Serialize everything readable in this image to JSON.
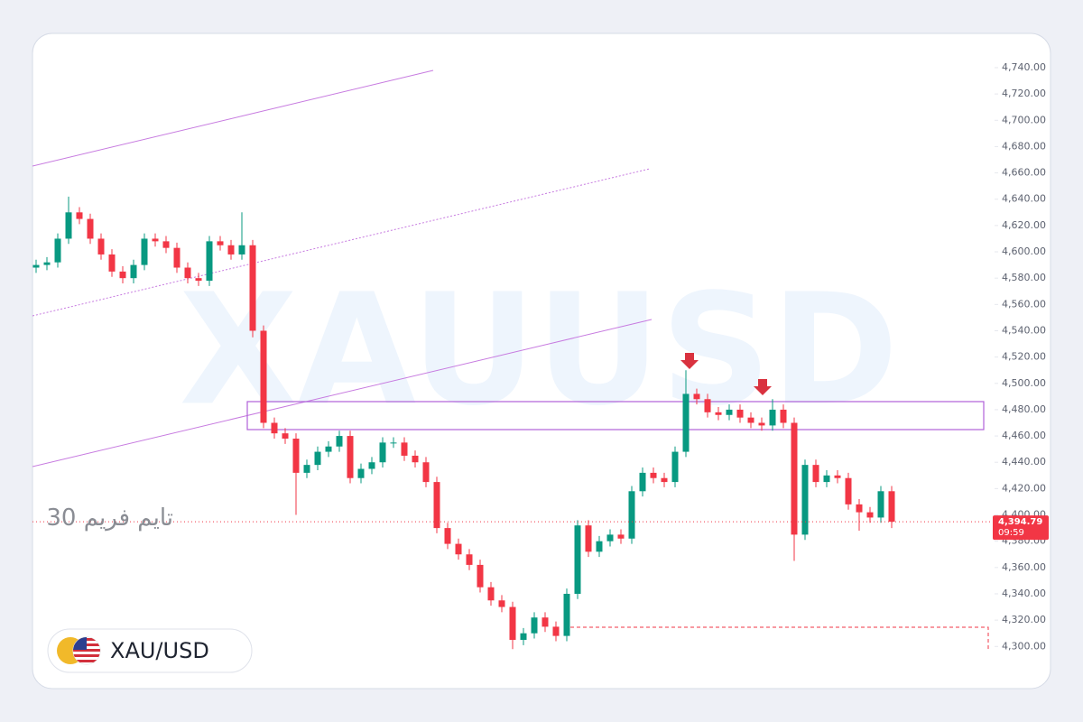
{
  "chart_data": {
    "type": "candlestick",
    "watermark": "XAUUSD",
    "symbol": "XAU/USD",
    "timeframe_note": "تايم فريم 30",
    "up_color": "#089981",
    "down_color": "#f23645",
    "open": [
      4588,
      4590,
      4592,
      4610,
      4630,
      4625,
      4610,
      4598,
      4585,
      4580,
      4590,
      4610,
      4608,
      4603,
      4588,
      4580,
      4578,
      4608,
      4605,
      4598,
      4605,
      4540,
      4470,
      4462,
      4458,
      4432,
      4438,
      4448,
      4452,
      4460,
      4428,
      4435,
      4440,
      4455,
      4455,
      4445,
      4440,
      4425,
      4390,
      4378,
      4370,
      4362,
      4345,
      4335,
      4330,
      4305,
      4310,
      4322,
      4315,
      4308,
      4340,
      4392,
      4372,
      4380,
      4385,
      4382,
      4418,
      4432,
      4428,
      4425,
      4448,
      4492,
      4488,
      4478,
      4476,
      4480,
      4474,
      4470,
      4468,
      4480,
      4470,
      4385,
      4438,
      4425,
      4430,
      4428,
      4408,
      4402,
      4398,
      4418
    ],
    "high": [
      4594,
      4596,
      4614,
      4642,
      4634,
      4629,
      4614,
      4602,
      4589,
      4594,
      4614,
      4614,
      4612,
      4607,
      4592,
      4584,
      4612,
      4612,
      4609,
      4630,
      4609,
      4544,
      4474,
      4466,
      4462,
      4442,
      4452,
      4456,
      4464,
      4464,
      4439,
      4444,
      4459,
      4459,
      4459,
      4449,
      4444,
      4429,
      4394,
      4382,
      4374,
      4366,
      4349,
      4339,
      4334,
      4314,
      4326,
      4326,
      4319,
      4344,
      4396,
      4396,
      4384,
      4389,
      4389,
      4422,
      4436,
      4436,
      4432,
      4452,
      4510,
      4496,
      4492,
      4482,
      4484,
      4484,
      4478,
      4474,
      4488,
      4484,
      4474,
      4442,
      4442,
      4434,
      4434,
      4432,
      4412,
      4406,
      4422,
      4422
    ],
    "low": [
      4584,
      4586,
      4588,
      4606,
      4621,
      4606,
      4594,
      4581,
      4576,
      4576,
      4586,
      4604,
      4599,
      4584,
      4576,
      4574,
      4574,
      4601,
      4594,
      4594,
      4535,
      4466,
      4458,
      4454,
      4400,
      4428,
      4434,
      4444,
      4448,
      4424,
      4424,
      4431,
      4436,
      4451,
      4441,
      4436,
      4421,
      4386,
      4374,
      4366,
      4358,
      4341,
      4331,
      4326,
      4298,
      4301,
      4306,
      4311,
      4304,
      4304,
      4336,
      4368,
      4368,
      4376,
      4378,
      4378,
      4414,
      4424,
      4421,
      4421,
      4444,
      4484,
      4474,
      4472,
      4472,
      4470,
      4466,
      4464,
      4464,
      4466,
      4365,
      4381,
      4421,
      4421,
      4424,
      4404,
      4388,
      4394,
      4394,
      4390
    ],
    "close": [
      4590,
      4592,
      4610,
      4630,
      4625,
      4610,
      4598,
      4585,
      4580,
      4590,
      4610,
      4608,
      4603,
      4588,
      4580,
      4578,
      4608,
      4605,
      4598,
      4605,
      4540,
      4470,
      4462,
      4458,
      4432,
      4438,
      4448,
      4452,
      4460,
      4428,
      4435,
      4440,
      4455,
      4455,
      4445,
      4440,
      4425,
      4390,
      4378,
      4370,
      4362,
      4345,
      4335,
      4330,
      4305,
      4310,
      4322,
      4315,
      4308,
      4340,
      4392,
      4372,
      4380,
      4385,
      4382,
      4418,
      4432,
      4428,
      4425,
      4448,
      4492,
      4488,
      4478,
      4476,
      4480,
      4474,
      4470,
      4468,
      4480,
      4470,
      4385,
      4438,
      4425,
      4430,
      4428,
      4408,
      4402,
      4398,
      4418,
      4394.79
    ],
    "ylim": [
      4270,
      4764
    ],
    "yticks": [
      {
        "value": 4300,
        "label": "4,300.00"
      },
      {
        "value": 4320,
        "label": "4,320.00"
      },
      {
        "value": 4340,
        "label": "4,340.00"
      },
      {
        "value": 4360,
        "label": "4,360.00"
      },
      {
        "value": 4380,
        "label": "4,380.00"
      },
      {
        "value": 4400,
        "label": "4,400.00"
      },
      {
        "value": 4420,
        "label": "4,420.00"
      },
      {
        "value": 4440,
        "label": "4,440.00"
      },
      {
        "value": 4460,
        "label": "4,460.00"
      },
      {
        "value": 4480,
        "label": "4,480.00"
      },
      {
        "value": 4500,
        "label": "4,500.00"
      },
      {
        "value": 4520,
        "label": "4,520.00"
      },
      {
        "value": 4540,
        "label": "4,540.00"
      },
      {
        "value": 4560,
        "label": "4,560.00"
      },
      {
        "value": 4580,
        "label": "4,580.00"
      },
      {
        "value": 4600,
        "label": "4,600.00"
      },
      {
        "value": 4620,
        "label": "4,620.00"
      },
      {
        "value": 4640,
        "label": "4,640.00"
      },
      {
        "value": 4660,
        "label": "4,660.00"
      },
      {
        "value": 4680,
        "label": "4,680.00"
      },
      {
        "value": 4700,
        "label": "4,700.00"
      },
      {
        "value": 4720,
        "label": "4,720.00"
      },
      {
        "value": 4740,
        "label": "4,740.00"
      }
    ],
    "last_price": {
      "value": 4394.79,
      "label": "4,394.79"
    },
    "countdown": "09:59"
  }
}
